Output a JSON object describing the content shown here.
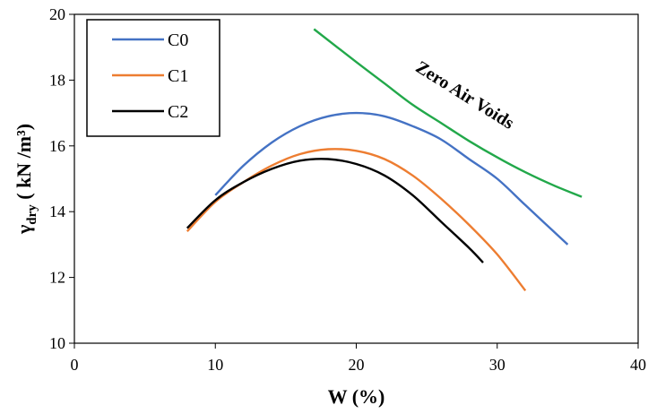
{
  "chart_data": {
    "type": "line",
    "title": "",
    "xlabel": "W (%)",
    "ylabel": {
      "main": "γ",
      "sub": "dry",
      "unit": " ( kN /m³)"
    },
    "xlim": [
      0,
      40
    ],
    "ylim": [
      10,
      20
    ],
    "xticks": [
      0,
      10,
      20,
      30,
      40
    ],
    "yticks": [
      10,
      12,
      14,
      16,
      18,
      20
    ],
    "grid": false,
    "legend_position": "top-left",
    "series": [
      {
        "name": "C0",
        "color": "#4472C4",
        "x": [
          10,
          12,
          14,
          16,
          18,
          20,
          22,
          24,
          26,
          28,
          30,
          32,
          35
        ],
        "y": [
          14.5,
          15.4,
          16.1,
          16.6,
          16.9,
          17.0,
          16.9,
          16.6,
          16.2,
          15.6,
          15.0,
          14.2,
          13.0
        ]
      },
      {
        "name": "C1",
        "color": "#ED7D31",
        "x": [
          8,
          10,
          12,
          14,
          16,
          18,
          20,
          22,
          24,
          26,
          28,
          30,
          32
        ],
        "y": [
          13.4,
          14.3,
          14.9,
          15.4,
          15.75,
          15.9,
          15.85,
          15.6,
          15.1,
          14.4,
          13.6,
          12.7,
          11.6
        ]
      },
      {
        "name": "C2",
        "color": "#000000",
        "x": [
          8,
          10,
          12,
          14,
          16,
          18,
          20,
          22,
          24,
          26,
          28,
          29
        ],
        "y": [
          13.5,
          14.35,
          14.9,
          15.3,
          15.55,
          15.6,
          15.45,
          15.1,
          14.5,
          13.7,
          12.9,
          12.45
        ]
      },
      {
        "name": "",
        "color": "#22A84A",
        "x": [
          17,
          20,
          22,
          24,
          26,
          28,
          30,
          32,
          34,
          36
        ],
        "y": [
          19.55,
          18.55,
          17.9,
          17.25,
          16.7,
          16.15,
          15.65,
          15.2,
          14.8,
          14.45
        ]
      }
    ],
    "annotations": [
      {
        "text": "Zero  Air   Voids",
        "x": 27.5,
        "y": 17.4,
        "angle": 32
      }
    ]
  }
}
